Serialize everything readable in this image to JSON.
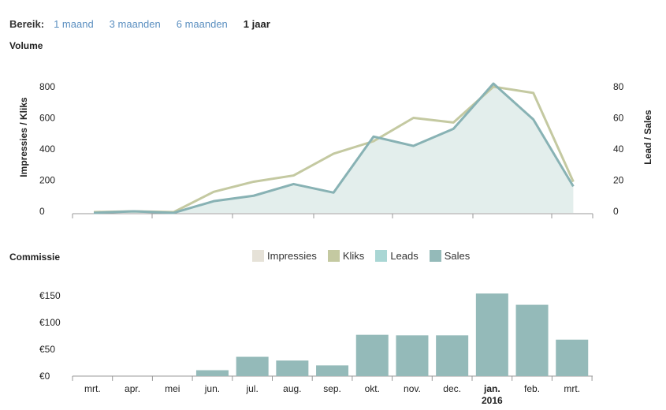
{
  "range": {
    "label": "Bereik:",
    "options": [
      "1 maand",
      "3 maanden",
      "6 maanden",
      "1 jaar"
    ],
    "active": "1 jaar"
  },
  "volume_title": "Volume",
  "commissie_title": "Commissie",
  "legend": [
    {
      "name": "Impressies",
      "color": "#e6e2d8"
    },
    {
      "name": "Kliks",
      "color": "#c4c9a1"
    },
    {
      "name": "Leads",
      "color": "#a9d6d4"
    },
    {
      "name": "Sales",
      "color": "#94bab9"
    }
  ],
  "colors": {
    "kliks_line": "#c4c9a1",
    "sales_line": "#88b2b4",
    "sales_fill": "#e3eeec",
    "bar": "#94bab9",
    "axis": "#999999"
  },
  "chart_data": [
    {
      "type": "area",
      "title": "Volume",
      "ylabel": "Impressies / Kliks",
      "y2label": "Lead / Sales",
      "yticks": [
        "800",
        "600",
        "400",
        "200",
        "0"
      ],
      "y2ticks": [
        "80",
        "60",
        "40",
        "20",
        "0"
      ],
      "ylim": [
        0,
        800
      ],
      "y2lim": [
        0,
        80
      ],
      "x": [
        "mrt.",
        "apr.",
        "mei",
        "jun.",
        "jul.",
        "aug.",
        "sep.",
        "okt.",
        "nov.",
        "dec.",
        "jan.",
        "feb.",
        "mrt."
      ],
      "series": [
        {
          "name": "Kliks",
          "axis": "left",
          "values": [
            -5,
            0,
            -5,
            125,
            190,
            230,
            370,
            450,
            600,
            570,
            800,
            760,
            190
          ]
        },
        {
          "name": "Sales",
          "axis": "right",
          "values": [
            -1,
            0,
            -1,
            6.5,
            10,
            17.5,
            12,
            48,
            42,
            53,
            82,
            59,
            16
          ]
        }
      ],
      "grid": false
    },
    {
      "type": "bar",
      "title": "Commissie",
      "categories": [
        "mrt.",
        "apr.",
        "mei",
        "jun.",
        "jul.",
        "aug.",
        "sep.",
        "okt.",
        "nov.",
        "dec.",
        "jan.",
        "feb.",
        "mrt."
      ],
      "category_sub": [
        "",
        "",
        "",
        "",
        "",
        "",
        "",
        "",
        "",
        "",
        "2016",
        "",
        ""
      ],
      "highlight_index": 10,
      "yticks": [
        "€150",
        "€100",
        "€50",
        "€0"
      ],
      "ylim": [
        0,
        150
      ],
      "values": [
        0,
        0,
        0,
        11,
        36,
        29,
        20,
        77,
        76,
        76,
        154,
        133,
        68
      ],
      "grid": false
    }
  ]
}
